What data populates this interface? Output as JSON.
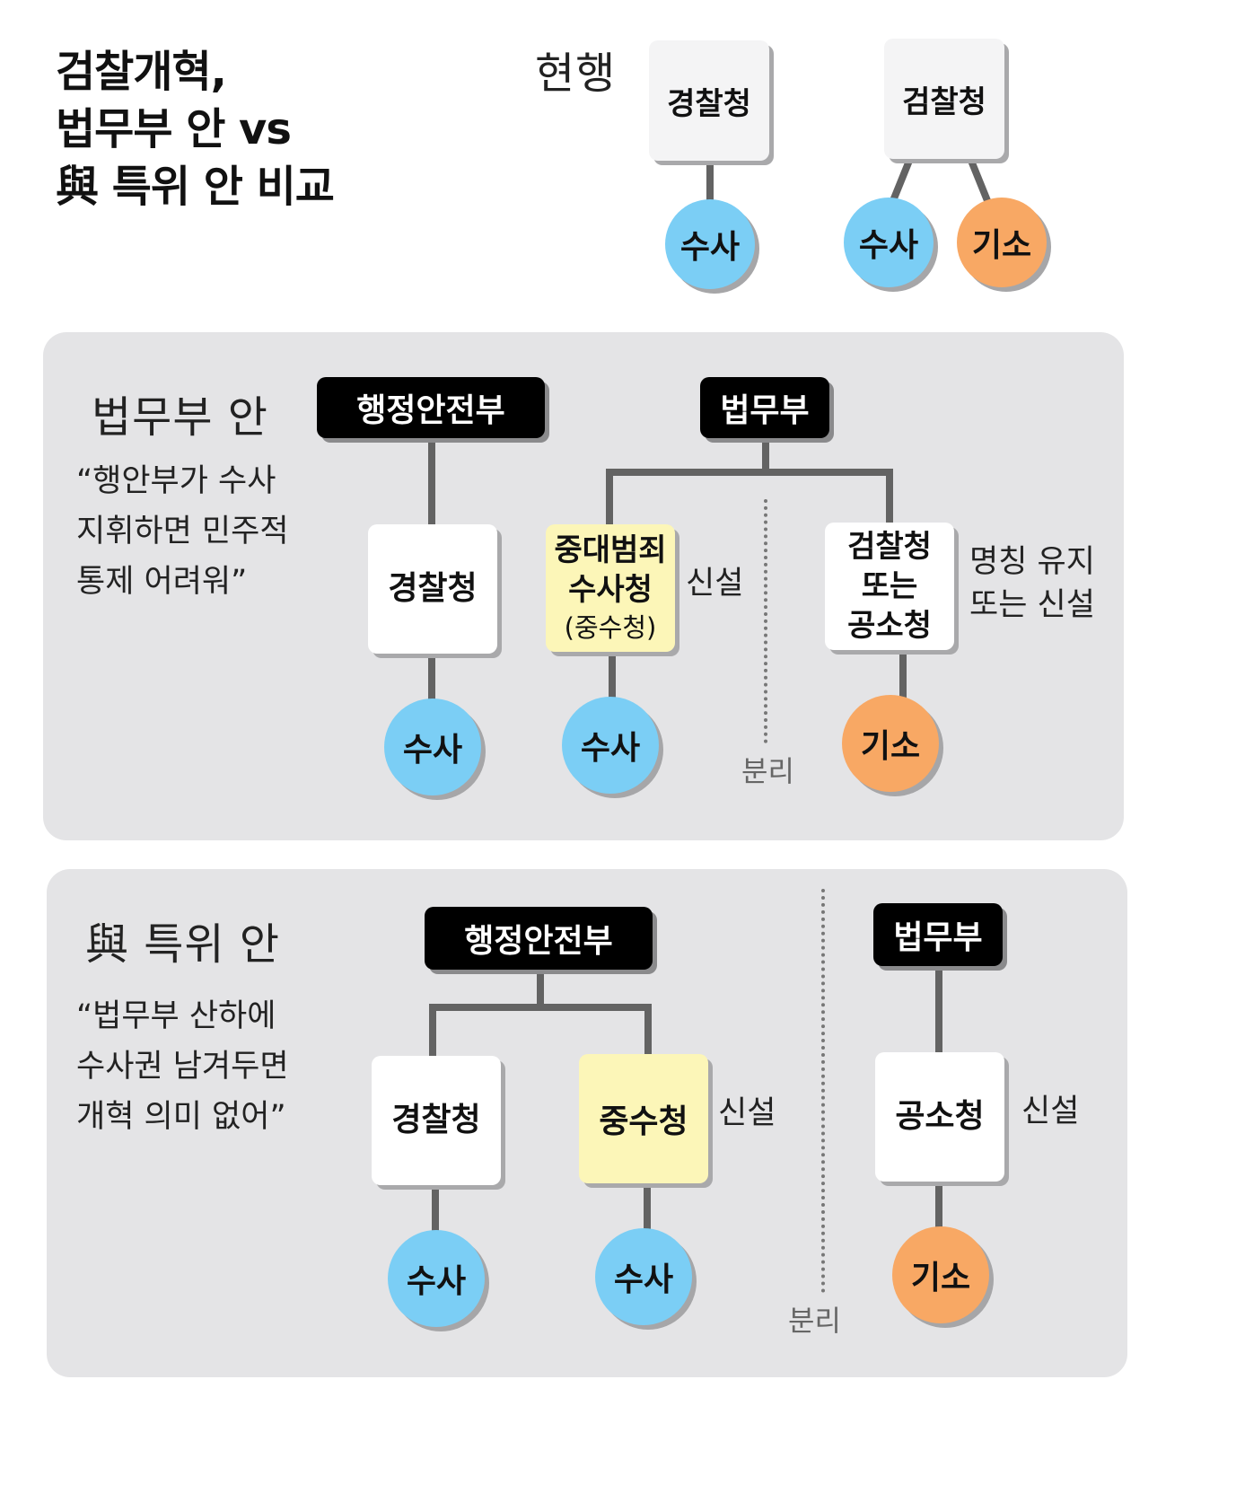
{
  "title": "검찰개혁,\n법무부 안 vs\n與 특위 안 비교",
  "current": {
    "label": "현행",
    "police": {
      "name": "경찰청",
      "roles": [
        "수사"
      ]
    },
    "prosecution": {
      "name": "검찰청",
      "roles": [
        "수사",
        "기소"
      ]
    }
  },
  "moj_plan": {
    "label": "법무부 안",
    "quote": "“행안부가 수사\n 지휘하면 민주적\n 통제 어려워”",
    "mois": "행정안전부",
    "moj": "법무부",
    "police": "경찰청",
    "sia_line1": "중대범죄",
    "sia_line2": "수사청",
    "sia_abbr": "(중수청)",
    "sia_note": "신설",
    "prosecution": "검찰청\n또는\n공소청",
    "prosecution_note": "명칭 유지\n또는 신설",
    "investigation": "수사",
    "indictment": "기소",
    "separation": "분리"
  },
  "party_plan": {
    "label": "與 특위 안",
    "quote": "“법무부 산하에\n 수사권 남겨두면\n 개혁 의미 없어”",
    "mois": "행정안전부",
    "moj": "법무부",
    "police": "경찰청",
    "sia": "중수청",
    "sia_note": "신설",
    "prosecution": "공소청",
    "prosecution_note": "신설",
    "investigation": "수사",
    "indictment": "기소",
    "separation": "분리"
  },
  "colors": {
    "investigation": "#7bcef5",
    "indictment": "#f8a864",
    "new_agency": "#fcf6b8",
    "ministry": "#000000",
    "panel": "#e4e4e6"
  }
}
